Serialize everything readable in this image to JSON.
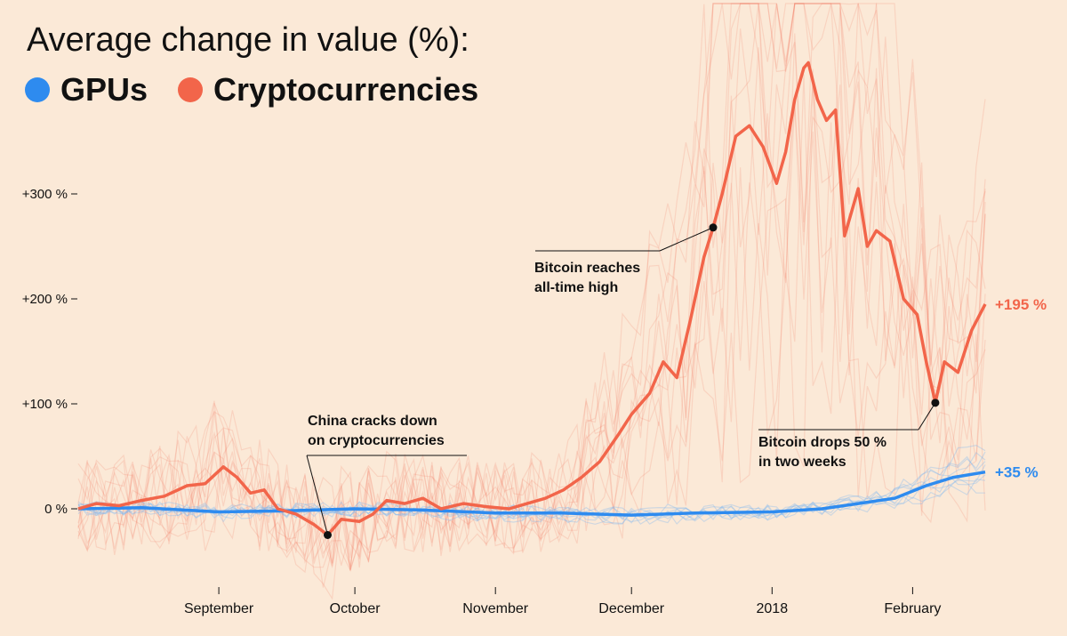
{
  "title": "Average change in value (%):",
  "legend": [
    {
      "label": "GPUs",
      "color": "#2e8bef"
    },
    {
      "label": "Cryptocurrencies",
      "color": "#f2654a"
    }
  ],
  "chart_data": {
    "type": "line",
    "title": "Average change in value (%):",
    "xlabel": "",
    "ylabel": "",
    "x_range": [
      "2017-08-01",
      "2018-02-17"
    ],
    "ylim": [
      -70,
      450
    ],
    "yticks": [
      {
        "value": 0,
        "label": "0 %"
      },
      {
        "value": 100,
        "label": "+100 %"
      },
      {
        "value": 200,
        "label": "+200 %"
      },
      {
        "value": 300,
        "label": "+300 %"
      }
    ],
    "xticks": [
      {
        "date": "2017-09-01",
        "label": "September"
      },
      {
        "date": "2017-10-01",
        "label": "October"
      },
      {
        "date": "2017-11-01",
        "label": "November"
      },
      {
        "date": "2017-12-01",
        "label": "December"
      },
      {
        "date": "2018-01-01",
        "label": "2018"
      },
      {
        "date": "2018-02-01",
        "label": "February"
      }
    ],
    "series": [
      {
        "name": "Cryptocurrencies",
        "color": "#f2654a",
        "points": [
          [
            "2017-08-01",
            0
          ],
          [
            "2017-08-05",
            5
          ],
          [
            "2017-08-10",
            3
          ],
          [
            "2017-08-15",
            8
          ],
          [
            "2017-08-20",
            12
          ],
          [
            "2017-08-25",
            22
          ],
          [
            "2017-08-29",
            24
          ],
          [
            "2017-09-02",
            40
          ],
          [
            "2017-09-05",
            30
          ],
          [
            "2017-09-08",
            15
          ],
          [
            "2017-09-11",
            18
          ],
          [
            "2017-09-14",
            0
          ],
          [
            "2017-09-18",
            -5
          ],
          [
            "2017-09-22",
            -15
          ],
          [
            "2017-09-25",
            -25
          ],
          [
            "2017-09-28",
            -10
          ],
          [
            "2017-10-02",
            -12
          ],
          [
            "2017-10-05",
            -5
          ],
          [
            "2017-10-08",
            8
          ],
          [
            "2017-10-12",
            5
          ],
          [
            "2017-10-16",
            10
          ],
          [
            "2017-10-20",
            0
          ],
          [
            "2017-10-25",
            5
          ],
          [
            "2017-10-30",
            2
          ],
          [
            "2017-11-04",
            0
          ],
          [
            "2017-11-08",
            5
          ],
          [
            "2017-11-12",
            10
          ],
          [
            "2017-11-16",
            18
          ],
          [
            "2017-11-20",
            30
          ],
          [
            "2017-11-24",
            45
          ],
          [
            "2017-11-28",
            70
          ],
          [
            "2017-12-01",
            90
          ],
          [
            "2017-12-05",
            110
          ],
          [
            "2017-12-08",
            140
          ],
          [
            "2017-12-11",
            125
          ],
          [
            "2017-12-14",
            180
          ],
          [
            "2017-12-17",
            240
          ],
          [
            "2017-12-19",
            268
          ],
          [
            "2017-12-21",
            300
          ],
          [
            "2017-12-24",
            355
          ],
          [
            "2017-12-27",
            365
          ],
          [
            "2017-12-30",
            345
          ],
          [
            "2018-01-02",
            310
          ],
          [
            "2018-01-04",
            340
          ],
          [
            "2018-01-06",
            390
          ],
          [
            "2018-01-08",
            420
          ],
          [
            "2018-01-09",
            425
          ],
          [
            "2018-01-11",
            390
          ],
          [
            "2018-01-13",
            370
          ],
          [
            "2018-01-15",
            380
          ],
          [
            "2018-01-17",
            260
          ],
          [
            "2018-01-20",
            305
          ],
          [
            "2018-01-22",
            250
          ],
          [
            "2018-01-24",
            265
          ],
          [
            "2018-01-27",
            255
          ],
          [
            "2018-01-30",
            200
          ],
          [
            "2018-02-02",
            185
          ],
          [
            "2018-02-04",
            140
          ],
          [
            "2018-02-06",
            101
          ],
          [
            "2018-02-08",
            140
          ],
          [
            "2018-02-11",
            130
          ],
          [
            "2018-02-14",
            170
          ],
          [
            "2018-02-17",
            195
          ]
        ]
      },
      {
        "name": "GPUs",
        "color": "#2e8bef",
        "points": [
          [
            "2017-08-01",
            0
          ],
          [
            "2017-08-15",
            1
          ],
          [
            "2017-09-01",
            -3
          ],
          [
            "2017-09-15",
            -2
          ],
          [
            "2017-10-01",
            0
          ],
          [
            "2017-10-15",
            -1
          ],
          [
            "2017-11-01",
            -4
          ],
          [
            "2017-11-15",
            -4
          ],
          [
            "2017-12-01",
            -6
          ],
          [
            "2017-12-15",
            -4
          ],
          [
            "2018-01-01",
            -3
          ],
          [
            "2018-01-12",
            0
          ],
          [
            "2018-01-20",
            5
          ],
          [
            "2018-01-28",
            10
          ],
          [
            "2018-02-04",
            22
          ],
          [
            "2018-02-10",
            30
          ],
          [
            "2018-02-17",
            35
          ]
        ]
      }
    ],
    "annotations": [
      {
        "lines": [
          "China cracks down",
          "on cryptocurrencies"
        ],
        "date": "2017-09-25",
        "value": -25
      },
      {
        "lines": [
          "Bitcoin reaches",
          "all-time high"
        ],
        "date": "2017-12-19",
        "value": 268
      },
      {
        "lines": [
          "Bitcoin drops 50 %",
          "in two weeks"
        ],
        "date": "2018-02-06",
        "value": 101
      }
    ],
    "end_labels": [
      {
        "series": "Cryptocurrencies",
        "text": "+195 %",
        "color": "#f2654a"
      },
      {
        "series": "GPUs",
        "text": "+35 %",
        "color": "#2e8bef"
      }
    ]
  }
}
